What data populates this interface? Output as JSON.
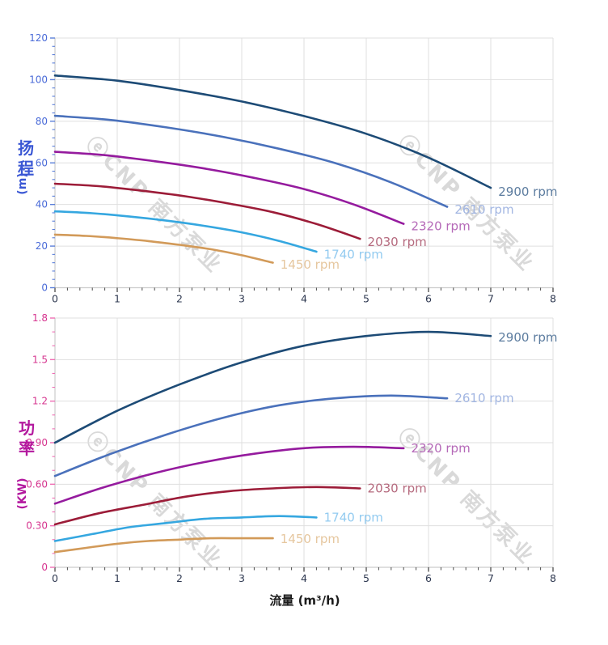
{
  "watermark": {
    "text": "ⓔCNP 南方泵业",
    "color": "#d9d9d9"
  },
  "palette": {
    "grid": "#dfdfdf",
    "axis_line": "#cccccc",
    "x_tick": "#4a4a4a",
    "x_tick_label": "#2e3850",
    "head_axis_accent": "#5b7fd9",
    "head_tick_label": "#4a6bd8",
    "head_title": "#3a57d4",
    "power_axis_accent": "#ef6eb4",
    "power_tick_label": "#d6358f",
    "power_title": "#b3189e",
    "flow_title": "#1c1c1c"
  },
  "chart_data": [
    {
      "type": "line",
      "id": "head",
      "ylabel_cn": "扬程",
      "ylabel_unit": "(m)",
      "xlim": [
        0,
        8
      ],
      "ylim": [
        0,
        120
      ],
      "x_tick_labels": [
        "0",
        "1",
        "2",
        "3",
        "4",
        "5",
        "6",
        "7",
        "8"
      ],
      "y_tick_labels": [
        "0",
        "20",
        "40",
        "60",
        "80",
        "100",
        "120"
      ],
      "x_major_step": 1,
      "x_minor_step": 0.2,
      "y_major_step": 20,
      "y_minor_step": 4,
      "grid": true,
      "legend_position": "at-line-end",
      "series": [
        {
          "name": "2900 rpm",
          "color": "#1d4b76",
          "label_color": "#5c7c9f",
          "points": [
            [
              0,
              102
            ],
            [
              1,
              99.5
            ],
            [
              2,
              95
            ],
            [
              3,
              89.5
            ],
            [
              4,
              82.5
            ],
            [
              5,
              74
            ],
            [
              6,
              62.5
            ],
            [
              7,
              48
            ]
          ],
          "label_at": [
            7.12,
            46
          ]
        },
        {
          "name": "2610 rpm",
          "color": "#4a71bb",
          "label_color": "#a2b6e2",
          "points": [
            [
              0,
              82.6
            ],
            [
              0.9,
              80.6
            ],
            [
              1.8,
              77
            ],
            [
              2.7,
              72.5
            ],
            [
              3.6,
              66.8
            ],
            [
              4.5,
              59.9
            ],
            [
              5.4,
              50.6
            ],
            [
              6.3,
              38.9
            ]
          ],
          "label_at": [
            6.42,
            37.5
          ]
        },
        {
          "name": "2320 rpm",
          "color": "#951b9e",
          "label_color": "#b569b8",
          "points": [
            [
              0,
              65.3
            ],
            [
              0.8,
              63.7
            ],
            [
              1.6,
              60.8
            ],
            [
              2.4,
              57.3
            ],
            [
              3.2,
              52.8
            ],
            [
              4,
              47.4
            ],
            [
              4.8,
              40
            ],
            [
              5.6,
              30.7
            ]
          ],
          "label_at": [
            5.72,
            29.5
          ]
        },
        {
          "name": "2030 rpm",
          "color": "#9c1c38",
          "label_color": "#b56a7e",
          "points": [
            [
              0,
              50
            ],
            [
              0.7,
              48.8
            ],
            [
              1.4,
              46.6
            ],
            [
              2.1,
              43.9
            ],
            [
              2.8,
              40.4
            ],
            [
              3.5,
              36.3
            ],
            [
              4.2,
              30.6
            ],
            [
              4.9,
              23.5
            ]
          ],
          "label_at": [
            5.02,
            22
          ]
        },
        {
          "name": "1740 rpm",
          "color": "#35a7e0",
          "label_color": "#93cbf0",
          "points": [
            [
              0,
              36.7
            ],
            [
              0.6,
              35.8
            ],
            [
              1.2,
              34.2
            ],
            [
              1.8,
              32.2
            ],
            [
              2.4,
              29.7
            ],
            [
              3,
              26.6
            ],
            [
              3.6,
              22.5
            ],
            [
              4.2,
              17.3
            ]
          ],
          "label_at": [
            4.32,
            16
          ]
        },
        {
          "name": "1450 rpm",
          "color": "#d29a59",
          "label_color": "#e6c79f",
          "points": [
            [
              0,
              25.5
            ],
            [
              0.5,
              24.9
            ],
            [
              1,
              23.8
            ],
            [
              1.5,
              22.4
            ],
            [
              2,
              20.6
            ],
            [
              2.5,
              18.5
            ],
            [
              3,
              15.6
            ],
            [
              3.5,
              12
            ]
          ],
          "label_at": [
            3.62,
            11
          ]
        }
      ]
    },
    {
      "type": "line",
      "id": "power",
      "ylabel_cn": "功率",
      "ylabel_unit": "(KW)",
      "xlabel": "流量 (m³/h)",
      "xlim": [
        0,
        8
      ],
      "ylim": [
        0,
        1.8
      ],
      "x_tick_labels": [
        "0",
        "1",
        "2",
        "3",
        "4",
        "5",
        "6",
        "7",
        "8"
      ],
      "y_tick_labels": [
        "0",
        "0.30",
        "0.60",
        "0.90",
        "1.2",
        "1.5",
        "1.8"
      ],
      "x_major_step": 1,
      "x_minor_step": 0.2,
      "y_major_step": 0.3,
      "y_minor_step": 0.1,
      "grid": true,
      "legend_position": "at-line-end",
      "series": [
        {
          "name": "2900 rpm",
          "color": "#1d4b76",
          "label_color": "#5c7c9f",
          "points": [
            [
              0,
              0.9
            ],
            [
              1,
              1.13
            ],
            [
              2,
              1.32
            ],
            [
              3,
              1.48
            ],
            [
              4,
              1.6
            ],
            [
              5,
              1.67
            ],
            [
              6,
              1.7
            ],
            [
              7,
              1.67
            ]
          ],
          "label_at": [
            7.12,
            1.66
          ]
        },
        {
          "name": "2610 rpm",
          "color": "#4a71bb",
          "label_color": "#a2b6e2",
          "points": [
            [
              0,
              0.66
            ],
            [
              0.9,
              0.82
            ],
            [
              1.8,
              0.96
            ],
            [
              2.7,
              1.08
            ],
            [
              3.6,
              1.17
            ],
            [
              4.5,
              1.22
            ],
            [
              5.4,
              1.24
            ],
            [
              6.3,
              1.22
            ]
          ],
          "label_at": [
            6.42,
            1.22
          ]
        },
        {
          "name": "2320 rpm",
          "color": "#951b9e",
          "label_color": "#b569b8",
          "points": [
            [
              0,
              0.46
            ],
            [
              0.8,
              0.58
            ],
            [
              1.6,
              0.68
            ],
            [
              2.4,
              0.76
            ],
            [
              3.2,
              0.82
            ],
            [
              4,
              0.86
            ],
            [
              4.8,
              0.87
            ],
            [
              5.6,
              0.86
            ]
          ],
          "label_at": [
            5.72,
            0.86
          ]
        },
        {
          "name": "2030 rpm",
          "color": "#9c1c38",
          "label_color": "#b56a7e",
          "points": [
            [
              0,
              0.31
            ],
            [
              0.7,
              0.39
            ],
            [
              1.4,
              0.45
            ],
            [
              2.1,
              0.51
            ],
            [
              2.8,
              0.55
            ],
            [
              3.5,
              0.57
            ],
            [
              4.2,
              0.58
            ],
            [
              4.9,
              0.57
            ]
          ],
          "label_at": [
            5.02,
            0.57
          ]
        },
        {
          "name": "1740 rpm",
          "color": "#35a7e0",
          "label_color": "#93cbf0",
          "points": [
            [
              0,
              0.19
            ],
            [
              0.6,
              0.24
            ],
            [
              1.2,
              0.29
            ],
            [
              1.8,
              0.32
            ],
            [
              2.4,
              0.35
            ],
            [
              3,
              0.36
            ],
            [
              3.6,
              0.37
            ],
            [
              4.2,
              0.36
            ]
          ],
          "label_at": [
            4.32,
            0.36
          ]
        },
        {
          "name": "1450 rpm",
          "color": "#d29a59",
          "label_color": "#e6c79f",
          "points": [
            [
              0,
              0.11
            ],
            [
              0.5,
              0.14
            ],
            [
              1,
              0.17
            ],
            [
              1.5,
              0.19
            ],
            [
              2,
              0.2
            ],
            [
              2.5,
              0.21
            ],
            [
              3,
              0.21
            ],
            [
              3.5,
              0.21
            ]
          ],
          "label_at": [
            3.62,
            0.205
          ]
        }
      ]
    }
  ]
}
